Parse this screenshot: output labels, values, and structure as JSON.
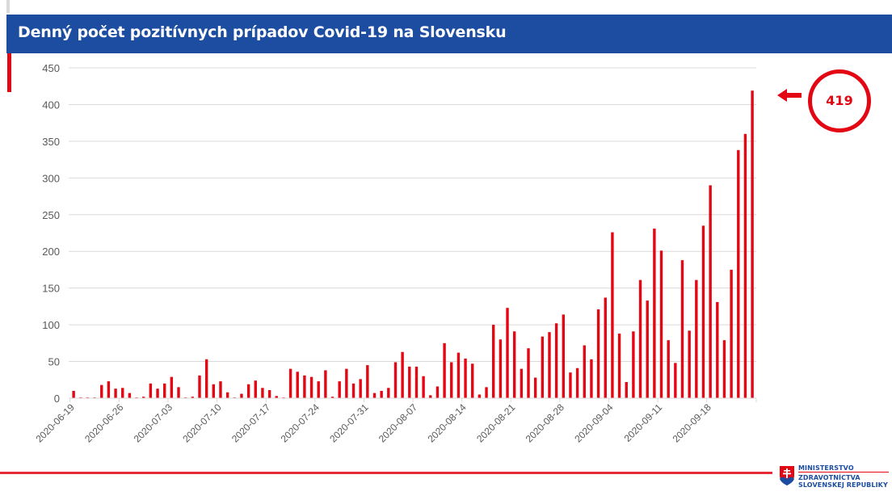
{
  "header": {
    "title": "Denný počet pozitívnych prípadov Covid-19 na Slovensku"
  },
  "callout": {
    "value_label": "419",
    "arrow_icon": "arrow-left-icon"
  },
  "logo": {
    "line1": "MINISTERSTVO",
    "line2": "ZDRAVOTNÍCTVA",
    "line3": "SLOVENSKEJ REPUBLIKY",
    "icon": "slovak-coat-of-arms-icon"
  },
  "colors": {
    "header_bg": "#1c4da1",
    "accent_red": "#e30613",
    "bar": "#e30613",
    "grid": "#d9d9d9",
    "tick_text": "#595959"
  },
  "chart_data": {
    "type": "bar",
    "title": "Denný počet pozitívnych prípadov Covid-19 na Slovensku",
    "xlabel": "",
    "ylabel": "",
    "ylim": [
      0,
      450
    ],
    "yticks": [
      0,
      50,
      100,
      150,
      200,
      250,
      300,
      350,
      400,
      450
    ],
    "grid": true,
    "legend": "none",
    "start_date": "2020-06-19",
    "end_date": "2020-09-24",
    "xtick_labels": [
      "2020-06-19",
      "2020-06-26",
      "2020-07-03",
      "2020-07-10",
      "2020-07-17",
      "2020-07-24",
      "2020-07-31",
      "2020-08-07",
      "2020-08-14",
      "2020-08-21",
      "2020-08-28",
      "2020-09-04",
      "2020-09-11",
      "2020-09-18"
    ],
    "xtick_interval_days": 7,
    "values": [
      10,
      1,
      1,
      1,
      18,
      23,
      13,
      14,
      7,
      1,
      2,
      20,
      13,
      20,
      29,
      15,
      1,
      2,
      31,
      53,
      19,
      23,
      8,
      1,
      6,
      19,
      24,
      14,
      11,
      3,
      1,
      40,
      36,
      31,
      29,
      23,
      38,
      2,
      23,
      40,
      20,
      26,
      45,
      7,
      10,
      14,
      49,
      63,
      43,
      43,
      30,
      4,
      16,
      75,
      49,
      62,
      54,
      47,
      5,
      15,
      100,
      80,
      123,
      91,
      40,
      68,
      28,
      84,
      90,
      102,
      114,
      35,
      41,
      72,
      53,
      121,
      137,
      226,
      88,
      22,
      91,
      161,
      133,
      231,
      201,
      79,
      48,
      188,
      92,
      161,
      235,
      290,
      131,
      79,
      175,
      338,
      360,
      419
    ],
    "annotation": {
      "text": "419",
      "target": "last bar",
      "style": "red circle with left arrow"
    }
  }
}
